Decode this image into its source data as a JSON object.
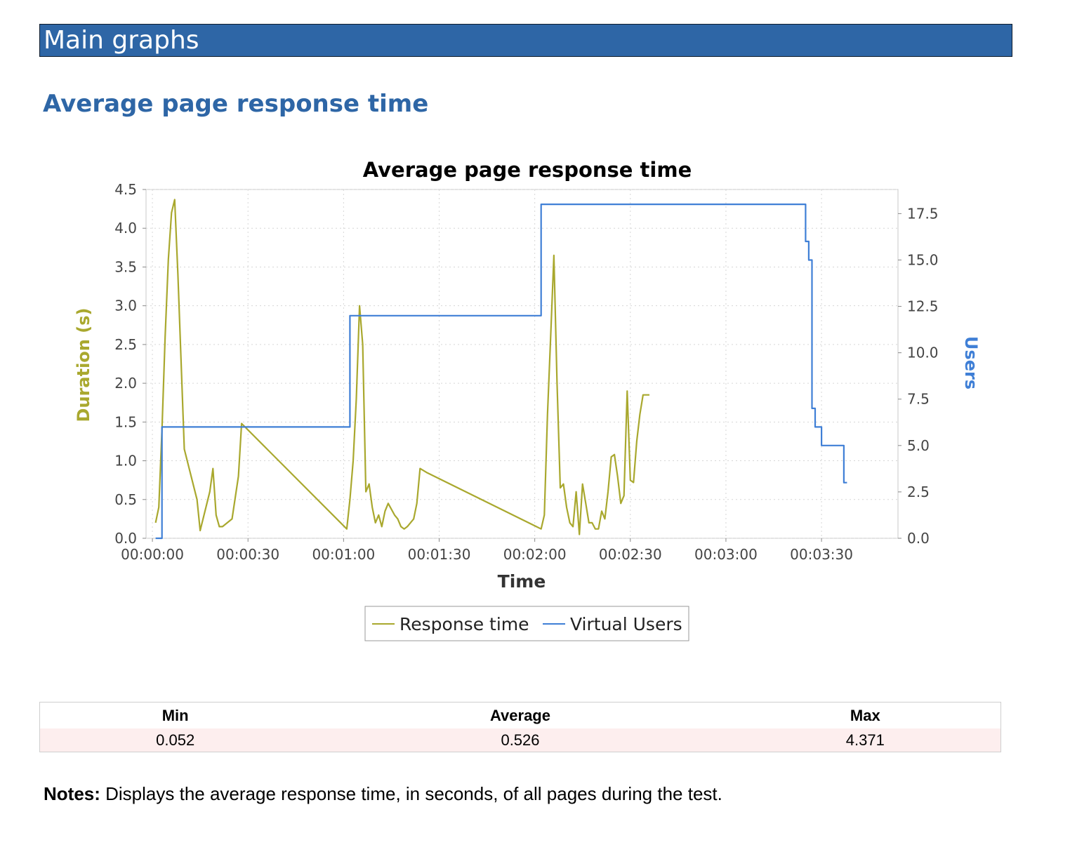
{
  "header": {
    "title": "Main graphs"
  },
  "section": {
    "title": "Average page response time"
  },
  "chart_data": {
    "type": "line",
    "title": "Average page response time",
    "xlabel": "Time",
    "ylabel": "Duration (s)",
    "y2label": "Users",
    "xlim": [
      -2,
      234
    ],
    "ylim": [
      0,
      4.5
    ],
    "y2lim": [
      0,
      18.8
    ],
    "x_ticks": [
      0,
      30,
      60,
      90,
      120,
      150,
      180,
      210
    ],
    "x_tick_labels": [
      "00:00:00",
      "00:00:30",
      "00:01:00",
      "00:01:30",
      "00:02:00",
      "00:02:30",
      "00:03:00",
      "00:03:30"
    ],
    "y_ticks": [
      0,
      0.5,
      1.0,
      1.5,
      2.0,
      2.5,
      3.0,
      3.5,
      4.0,
      4.5
    ],
    "y_tick_labels": [
      "0.0",
      "0.5",
      "1.0",
      "1.5",
      "2.0",
      "2.5",
      "3.0",
      "3.5",
      "4.0",
      "4.5"
    ],
    "y2_ticks": [
      0,
      2.5,
      5,
      7.5,
      10,
      12.5,
      15,
      17.5
    ],
    "y2_tick_labels": [
      "0.0",
      "2.5",
      "5.0",
      "7.5",
      "10.0",
      "12.5",
      "15.0",
      "17.5"
    ],
    "grid": true,
    "legend_position": "bottom-center",
    "series": [
      {
        "name": "Response time",
        "axis": "left",
        "color": "#a9a82e",
        "x": [
          1,
          2,
          3,
          4,
          5,
          6,
          7,
          8,
          10,
          14,
          15,
          18,
          19,
          20,
          21,
          22,
          25,
          27,
          28,
          61,
          62,
          63,
          64,
          65,
          66,
          67,
          68,
          69,
          70,
          71,
          72,
          73,
          74,
          76,
          77,
          78,
          79,
          80,
          82,
          83,
          84,
          86,
          122,
          123,
          124,
          125,
          126,
          127,
          128,
          129,
          130,
          131,
          132,
          133,
          134,
          135,
          136,
          137,
          138,
          139,
          140,
          141,
          142,
          143,
          144,
          145,
          146,
          147,
          148,
          149,
          150,
          151,
          152,
          153,
          154,
          155,
          156
        ],
        "values": [
          0.2,
          0.4,
          1.4,
          2.6,
          3.6,
          4.2,
          4.37,
          3.4,
          1.15,
          0.5,
          0.1,
          0.6,
          0.9,
          0.3,
          0.15,
          0.15,
          0.25,
          0.8,
          1.48,
          0.12,
          0.5,
          1.0,
          1.8,
          3.0,
          2.5,
          0.6,
          0.7,
          0.4,
          0.2,
          0.3,
          0.15,
          0.35,
          0.45,
          0.3,
          0.25,
          0.15,
          0.12,
          0.15,
          0.25,
          0.45,
          0.9,
          0.85,
          0.12,
          0.3,
          1.6,
          2.6,
          3.65,
          2.0,
          0.65,
          0.7,
          0.4,
          0.2,
          0.15,
          0.6,
          0.05,
          0.7,
          0.45,
          0.2,
          0.2,
          0.12,
          0.12,
          0.35,
          0.25,
          0.6,
          1.05,
          1.08,
          0.8,
          0.45,
          0.55,
          1.9,
          0.75,
          0.72,
          1.25,
          1.6,
          1.85,
          1.85,
          1.85
        ]
      },
      {
        "name": "Virtual Users",
        "axis": "right",
        "color": "#3f7fd6",
        "x": [
          1,
          3,
          3,
          62,
          62,
          122,
          122,
          205,
          205,
          206,
          206,
          207,
          207,
          208,
          208,
          210,
          210,
          217,
          217,
          218,
          218
        ],
        "values": [
          0,
          0,
          6,
          6,
          12,
          12,
          18,
          18,
          16,
          16,
          15,
          15,
          7,
          7,
          6,
          6,
          5,
          5,
          3,
          3,
          3
        ]
      }
    ]
  },
  "stats": {
    "headers": [
      "Min",
      "Average",
      "Max"
    ],
    "values": [
      "0.052",
      "0.526",
      "4.371"
    ]
  },
  "notes": {
    "label": "Notes:",
    "text": " Displays the average response time, in seconds, of all pages during the test."
  }
}
